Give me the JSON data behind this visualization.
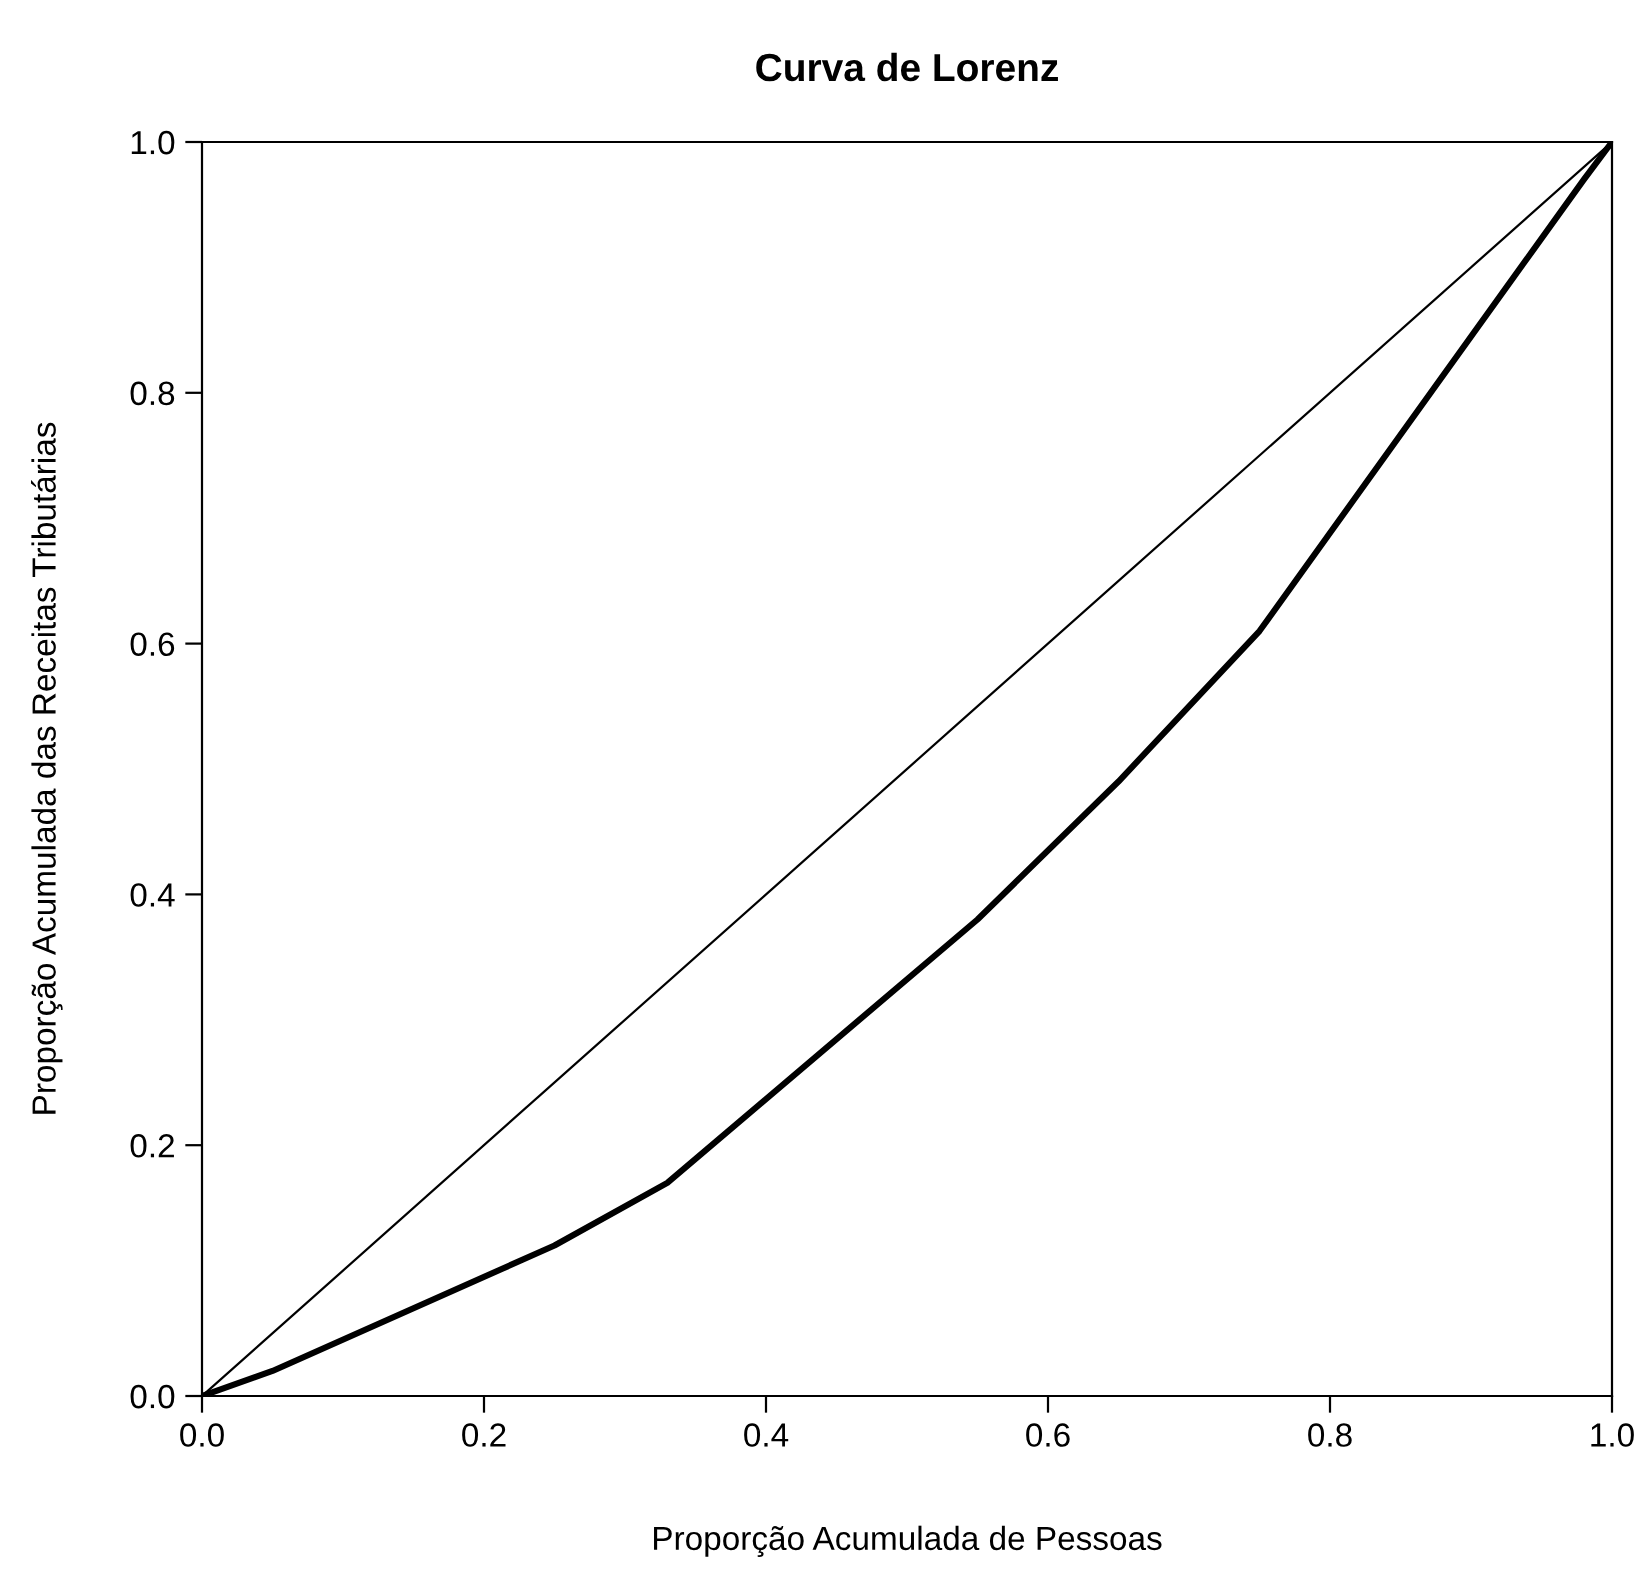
{
  "chart_data": {
    "type": "line",
    "title": "Curva de Lorenz",
    "xlabel": "Proporção Acumulada de Pessoas",
    "ylabel": "Proporção Acumulada das Receitas Tributárias",
    "series": [
      {
        "color": "#000000",
        "x": [
          0,
          1
        ],
        "values": [
          0,
          1
        ]
      },
      {
        "color": "#000000",
        "x": [
          0,
          0.05,
          0.25,
          0.33,
          0.55,
          0.65,
          0.75,
          0.98,
          1
        ],
        "values": [
          0,
          0.02,
          0.12,
          0.17,
          0.38,
          0.49,
          0.61,
          0.97,
          1
        ]
      }
    ],
    "xlim": [
      0,
      1
    ],
    "ylim": [
      0,
      1
    ],
    "xticks": [
      {
        "value": 0,
        "label": "0.0"
      },
      0.2,
      0.4,
      0.6,
      0.8,
      {
        "value": 1,
        "label": "1.0"
      }
    ],
    "yticks": [
      {
        "value": 0,
        "label": "0.0"
      },
      0.2,
      0.4,
      0.6,
      0.8,
      {
        "value": 1,
        "label": "1.0"
      }
    ],
    "grid": false,
    "legend": false,
    "marker": "none",
    "line_style": "solid"
  }
}
